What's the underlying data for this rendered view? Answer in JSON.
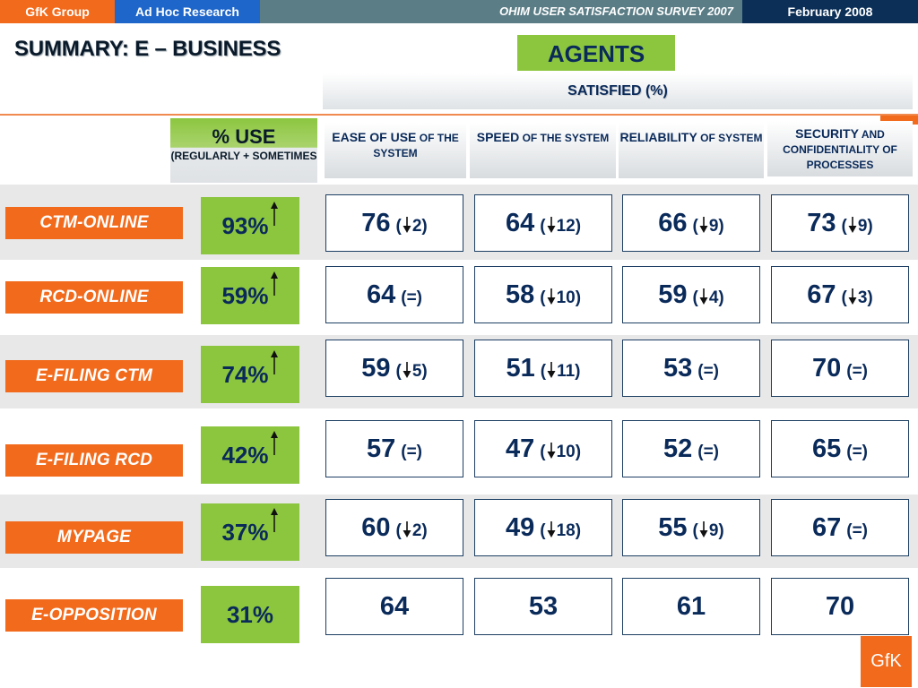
{
  "header": {
    "brand": "GfK Group",
    "division": "Ad Hoc Research",
    "survey": "OHIM USER SATISFACTION SURVEY 2007",
    "date": "February  2008"
  },
  "title": "SUMMARY: E – BUSINESS",
  "segment": "AGENTS",
  "satisfied_label": "SATISFIED (%)",
  "use_header": {
    "title": "% USE",
    "sub": "(REGULARLY + SOMETIMES"
  },
  "columns": [
    {
      "cap": "EASE OF USE",
      "rest": "OF THE SYSTEM"
    },
    {
      "cap": "SPEED",
      "rest": "OF THE SYSTEM"
    },
    {
      "cap": "RELIABILITY",
      "rest": "OF SYSTEM"
    },
    {
      "cap": "SECURITY",
      "rest": "AND CONFIDENTIALITY OF PROCESSES"
    }
  ],
  "rows": [
    {
      "label": "CTM-ONLINE",
      "use": "93%",
      "use_trend": "up",
      "cells": [
        {
          "value": "76",
          "change": "2",
          "trend": "down"
        },
        {
          "value": "64",
          "change": "12",
          "trend": "down"
        },
        {
          "value": "66",
          "change": "9",
          "trend": "down"
        },
        {
          "value": "73",
          "change": "9",
          "trend": "down"
        }
      ]
    },
    {
      "label": "RCD-ONLINE",
      "use": "59%",
      "use_trend": "up",
      "cells": [
        {
          "value": "64",
          "change": "(=)",
          "trend": "same"
        },
        {
          "value": "58",
          "change": "10",
          "trend": "down"
        },
        {
          "value": "59",
          "change": "4",
          "trend": "down"
        },
        {
          "value": "67",
          "change": "3",
          "trend": "down"
        }
      ]
    },
    {
      "label": "E-FILING CTM",
      "use": "74%",
      "use_trend": "up",
      "cells": [
        {
          "value": "59",
          "change": "5",
          "trend": "down"
        },
        {
          "value": "51",
          "change": "11",
          "trend": "down"
        },
        {
          "value": "53",
          "change": "(=)",
          "trend": "same"
        },
        {
          "value": "70",
          "change": "(=)",
          "trend": "same"
        }
      ]
    },
    {
      "label": "E-FILING RCD",
      "use": "42%",
      "use_trend": "up",
      "cells": [
        {
          "value": "57",
          "change": "(=)",
          "trend": "same"
        },
        {
          "value": "47",
          "change": "10",
          "trend": "down"
        },
        {
          "value": "52",
          "change": "(=)",
          "trend": "same"
        },
        {
          "value": "65",
          "change": "(=)",
          "trend": "same"
        }
      ]
    },
    {
      "label": "MYPAGE",
      "use": "37%",
      "use_trend": "up",
      "cells": [
        {
          "value": "60",
          "change": "2",
          "trend": "down"
        },
        {
          "value": "49",
          "change": "18",
          "trend": "down"
        },
        {
          "value": "55",
          "change": "9",
          "trend": "down"
        },
        {
          "value": "67",
          "change": "(=)",
          "trend": "same"
        }
      ]
    },
    {
      "label": "E-OPPOSITION",
      "use": "31%",
      "use_trend": "none",
      "cells": [
        {
          "value": "64",
          "change": "",
          "trend": "none"
        },
        {
          "value": "53",
          "change": "",
          "trend": "none"
        },
        {
          "value": "61",
          "change": "",
          "trend": "none"
        },
        {
          "value": "70",
          "change": "",
          "trend": "none"
        }
      ]
    }
  ],
  "logo": "GfK",
  "colors": {
    "orange": "#f26a1b",
    "green": "#8cc63f",
    "navy": "#0a2a5a",
    "blue": "#1e66c9"
  }
}
